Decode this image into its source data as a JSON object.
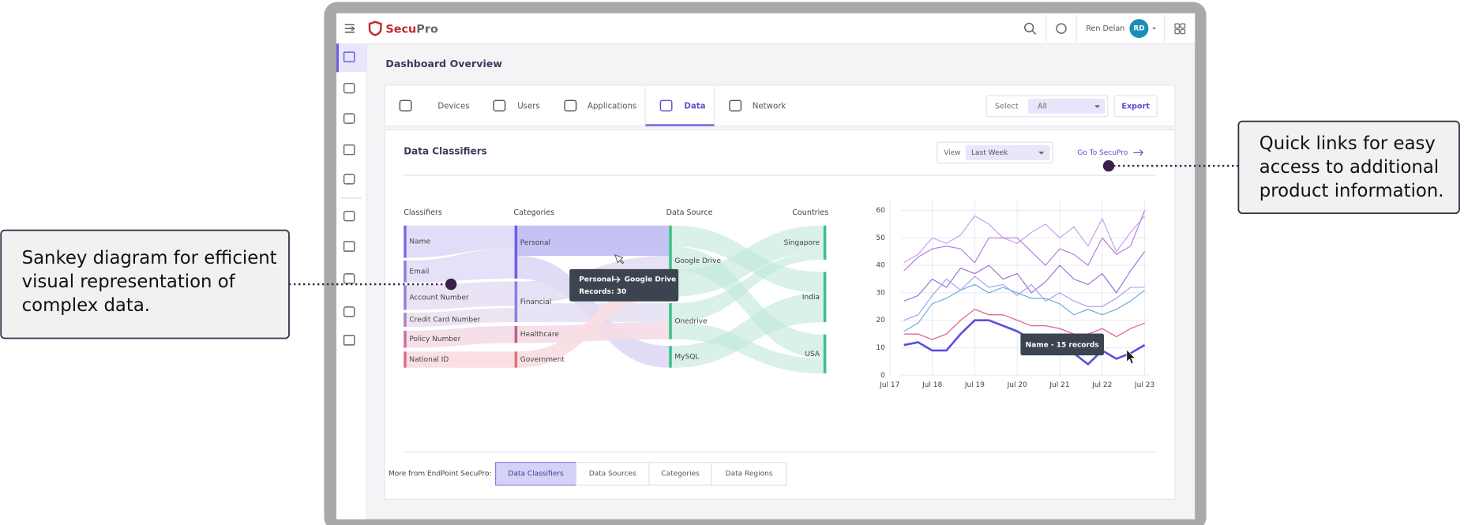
{
  "callouts": {
    "left": [
      "Sankey diagram for efficient",
      "visual representation of",
      "complex data."
    ],
    "right": [
      "Quick links for easy",
      "access to additional",
      "product information."
    ]
  },
  "header": {
    "logo": [
      "Secu",
      "Pro"
    ],
    "user": "Ren Delan",
    "avatar": "RD"
  },
  "page_title": "Dashboard Overview",
  "tabs": [
    "Devices",
    "Users",
    "Applications",
    "Data",
    "Network"
  ],
  "filter": {
    "label": "Select",
    "value": "All"
  },
  "export": "Export",
  "panel": {
    "title": "Data Classifiers",
    "view_label": "View",
    "view_value": "Last Week",
    "link": "Go To SecuPro"
  },
  "sankey": {
    "headers": [
      "Classifiers",
      "Categories",
      "Data Source",
      "Countries"
    ],
    "classifiers": [
      "Name",
      "Email",
      "Account Number",
      "Credit Card Number",
      "Policy Number",
      "National ID"
    ],
    "categories": [
      "Personal",
      "Financial",
      "Healthcare",
      "Government"
    ],
    "sources": [
      "Google Drive",
      "Onedrive",
      "MySQL"
    ],
    "countries": [
      "Singapore",
      "India",
      "USA"
    ],
    "tooltip": {
      "from": "Personal",
      "to": "Google Drive",
      "records": "Records: 30"
    }
  },
  "chart_data": {
    "type": "line",
    "categories": [
      "Jul 17",
      null,
      null,
      "Jul 18",
      null,
      null,
      "Jul 19",
      null,
      null,
      "Jul 20",
      null,
      null,
      "Jul 21",
      null,
      null,
      "Jul 22",
      null,
      null,
      "Jul 23"
    ],
    "series": [
      {
        "color": "#c9a0ea",
        "values": [
          null,
          41,
          44,
          50,
          48,
          51,
          58,
          55,
          50,
          48,
          52,
          55,
          50,
          54,
          47,
          57,
          45,
          52,
          58
        ]
      },
      {
        "color": "#b77fe0",
        "values": [
          null,
          38,
          43,
          46,
          47,
          46,
          41,
          50,
          50,
          50,
          45,
          40,
          46,
          44,
          40,
          50,
          44,
          47,
          60
        ]
      },
      {
        "color": "#9f6fd6",
        "values": [
          null,
          27,
          29,
          35,
          32,
          39,
          37,
          40,
          35,
          37,
          30,
          34,
          40,
          35,
          33,
          37,
          30,
          38,
          45
        ]
      },
      {
        "color": "#a9a0f0",
        "values": [
          null,
          20,
          22,
          29,
          35,
          31,
          36,
          32,
          33,
          29,
          33,
          27,
          30,
          27,
          25,
          25,
          28,
          32,
          32
        ]
      },
      {
        "color": "#6aaee0",
        "values": [
          null,
          16,
          19,
          26,
          28,
          31,
          33,
          30,
          32,
          30,
          28,
          28,
          26,
          22,
          24,
          22,
          24,
          27,
          31
        ]
      },
      {
        "color": "#d9608a",
        "values": [
          null,
          15,
          15,
          13,
          15,
          20,
          24,
          22,
          22,
          20,
          18,
          18,
          17,
          15,
          15,
          17,
          14,
          17,
          19
        ]
      },
      {
        "color": "#5b4fe0",
        "values": [
          null,
          11,
          12,
          9,
          9,
          15,
          20,
          20,
          18,
          16,
          13,
          11,
          11,
          8,
          4,
          9,
          6,
          8,
          11
        ]
      }
    ],
    "ylim": [
      0,
      60
    ],
    "yticks": [
      0,
      10,
      20,
      30,
      40,
      50,
      60
    ],
    "grid": true,
    "tooltip": "Name - 15 records"
  },
  "footer": {
    "label": "More from EndPoint SecuPro:",
    "links": [
      "Data Classifiers",
      "Data Sources",
      "Categories",
      "Data Regions"
    ]
  }
}
